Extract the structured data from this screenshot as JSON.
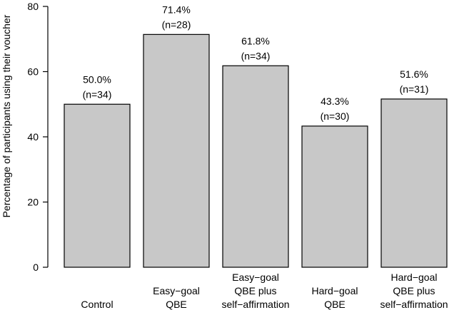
{
  "chart_data": {
    "type": "bar",
    "title": "",
    "xlabel": "",
    "ylabel": "Percentage of participants using their voucher",
    "ylim": [
      0,
      80
    ],
    "yticks": [
      0,
      20,
      40,
      60,
      80
    ],
    "grid": false,
    "categories": [
      [
        "Control"
      ],
      [
        "Easy−goal",
        "QBE"
      ],
      [
        "Easy−goal",
        "QBE plus",
        "self−affirmation"
      ],
      [
        "Hard−goal",
        "QBE"
      ],
      [
        "Hard−goal",
        "QBE plus",
        "self−affirmation"
      ]
    ],
    "values": [
      50.0,
      71.4,
      61.8,
      43.3,
      51.6
    ],
    "data_labels": [
      [
        "50.0%",
        "(n=34)"
      ],
      [
        "71.4%",
        "(n=28)"
      ],
      [
        "61.8%",
        "(n=34)"
      ],
      [
        "43.3%",
        "(n=30)"
      ],
      [
        "51.6%",
        "(n=31)"
      ]
    ],
    "colors": {
      "bar_fill": "#c8c8c8",
      "bar_stroke": "#000000"
    }
  }
}
